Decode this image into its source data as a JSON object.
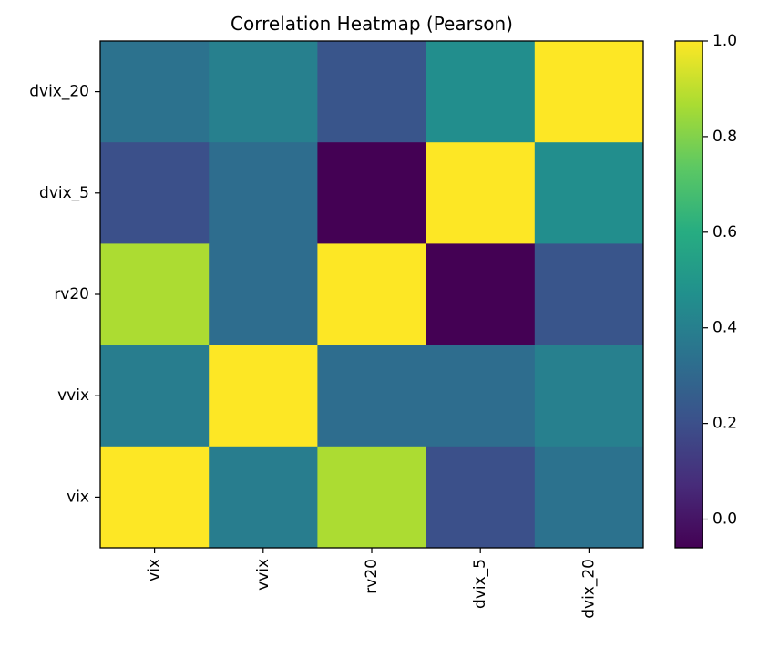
{
  "chart_data": {
    "type": "heatmap",
    "title": "Correlation Heatmap (Pearson)",
    "xlabel": "",
    "ylabel": "",
    "x_categories": [
      "vix",
      "vvix",
      "rv20",
      "dvix_5",
      "dvix_20"
    ],
    "y_categories_top_to_bottom": [
      "dvix_20",
      "dvix_5",
      "rv20",
      "vvix",
      "vix"
    ],
    "matrix_top_to_bottom": [
      [
        0.34,
        0.4,
        0.22,
        0.46,
        1.0
      ],
      [
        0.2,
        0.32,
        -0.06,
        1.0,
        0.46
      ],
      [
        0.87,
        0.32,
        1.0,
        -0.06,
        0.22
      ],
      [
        0.39,
        1.0,
        0.32,
        0.32,
        0.4
      ],
      [
        1.0,
        0.39,
        0.87,
        0.2,
        0.34
      ]
    ],
    "colormap": "viridis",
    "color_range": [
      -0.06,
      1.0
    ],
    "colorbar_ticks": [
      "0.0",
      "0.2",
      "0.4",
      "0.6",
      "0.8",
      "1.0"
    ],
    "colorbar_tick_values": [
      0.0,
      0.2,
      0.4,
      0.6,
      0.8,
      1.0
    ],
    "x_tick_rotation": "vertical",
    "grid": false,
    "colorbar_position": "right"
  }
}
